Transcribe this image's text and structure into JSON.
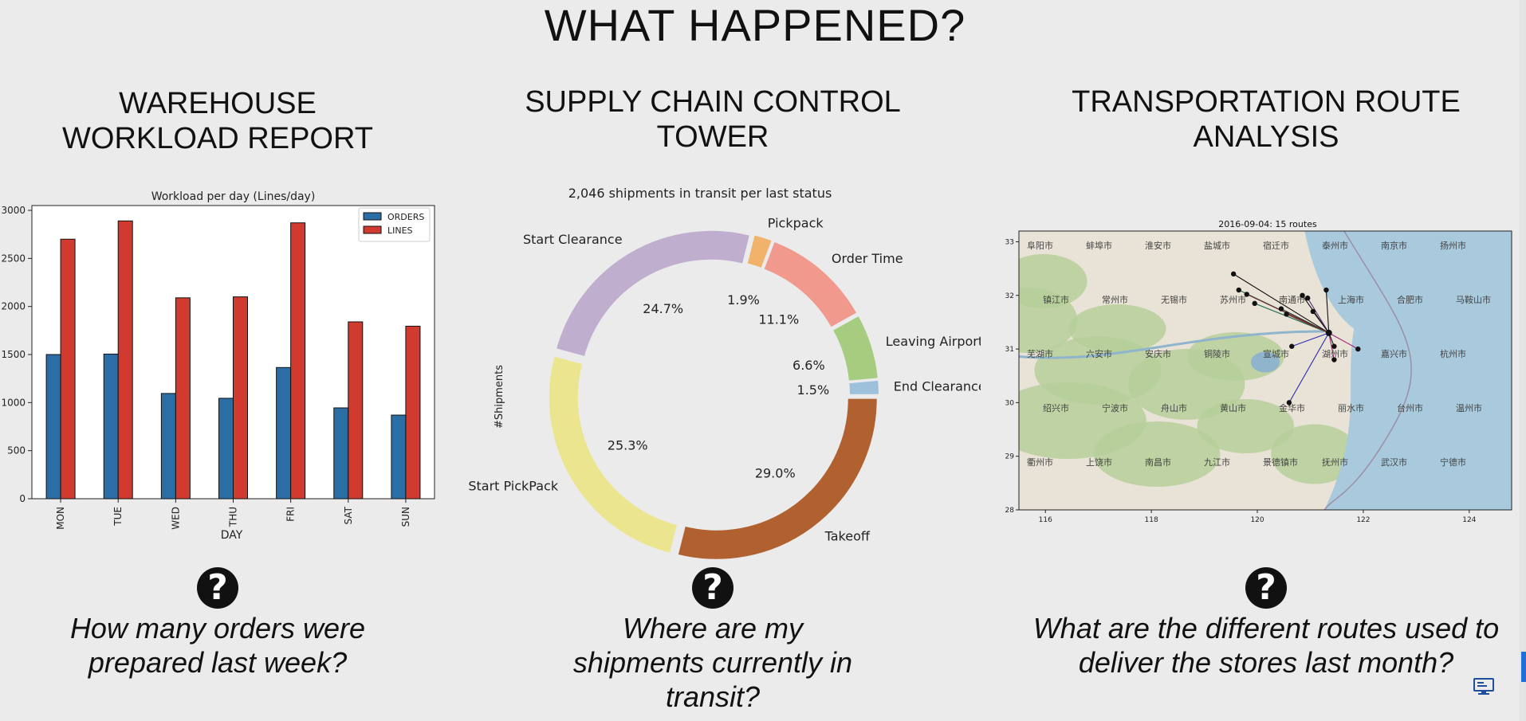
{
  "page": {
    "title": "WHAT HAPPENED?"
  },
  "sections": [
    {
      "title_line1": "WAREHOUSE",
      "title_line2": "WORKLOAD REPORT",
      "question_line1": "How many orders were",
      "question_line2": "prepared last week?",
      "question_line3": ""
    },
    {
      "title_line1": "SUPPLY CHAIN CONTROL",
      "title_line2": "TOWER",
      "question_line1": "Where are my",
      "question_line2": "shipments currently in",
      "question_line3": "transit?"
    },
    {
      "title_line1": "TRANSPORTATION ROUTE",
      "title_line2": "ANALYSIS",
      "question_line1": "What are the different routes used to",
      "question_line2": "deliver the stores last month?",
      "question_line3": ""
    }
  ],
  "help_icon": "question-mark-icon",
  "chart_data": [
    {
      "type": "bar",
      "title": "Workload per day (Lines/day)",
      "xlabel": "DAY",
      "ylabel": "",
      "categories": [
        "MON",
        "TUE",
        "WED",
        "THU",
        "FRI",
        "SAT",
        "SUN"
      ],
      "series": [
        {
          "name": "ORDERS",
          "color": "#2b6ea5",
          "values": [
            1500,
            1505,
            1095,
            1045,
            1365,
            945,
            870
          ]
        },
        {
          "name": "LINES",
          "color": "#d03a2f",
          "values": [
            2700,
            2890,
            2090,
            2100,
            2870,
            1840,
            1795
          ]
        }
      ],
      "ylim": [
        0,
        3050
      ],
      "yticks": [
        0,
        500,
        1000,
        1500,
        2000,
        2500,
        3000
      ],
      "legend": "top-right",
      "grid": false
    },
    {
      "type": "pie",
      "variant": "donut",
      "title": "2,046 shipments in transit per last status",
      "ylabel": "#Shipments",
      "slices": [
        {
          "label": "End Clearance",
          "pct": 1.5,
          "pct_label": "1.5%",
          "color": "#9ec1db"
        },
        {
          "label": "Leaving Airport",
          "pct": 6.6,
          "pct_label": "6.6%",
          "color": "#a6cc7f"
        },
        {
          "label": "Order Time",
          "pct": 11.1,
          "pct_label": "11.1%",
          "color": "#f0998c"
        },
        {
          "label": "Pickpack",
          "pct": 1.9,
          "pct_label": "1.9%",
          "color": "#f1b36b"
        },
        {
          "label": "Start Clearance",
          "pct": 24.7,
          "pct_label": "24.7%",
          "color": "#c0aece"
        },
        {
          "label": "Start PickPack",
          "pct": 25.3,
          "pct_label": "25.3%",
          "color": "#ece590"
        },
        {
          "label": "Takeoff",
          "pct": 29.0,
          "pct_label": "29.0%",
          "color": "#b0612f"
        }
      ]
    },
    {
      "type": "scatter",
      "variant": "route-map",
      "title": "2016-09-04: 15 routes",
      "xlabel": "",
      "ylabel": "",
      "xlim": [
        115.5,
        124.8
      ],
      "ylim": [
        28,
        33.2
      ],
      "xticks": [
        116,
        118,
        120,
        122,
        124
      ],
      "yticks": [
        28,
        29,
        30,
        31,
        32,
        33
      ],
      "hub": {
        "lon": 121.35,
        "lat": 31.3
      },
      "stores": [
        {
          "lon": 119.55,
          "lat": 32.4
        },
        {
          "lon": 119.65,
          "lat": 32.1
        },
        {
          "lon": 119.8,
          "lat": 32.02
        },
        {
          "lon": 119.95,
          "lat": 31.85
        },
        {
          "lon": 120.45,
          "lat": 31.75
        },
        {
          "lon": 120.55,
          "lat": 31.65
        },
        {
          "lon": 120.85,
          "lat": 32.0
        },
        {
          "lon": 120.95,
          "lat": 31.95
        },
        {
          "lon": 121.05,
          "lat": 31.7
        },
        {
          "lon": 121.3,
          "lat": 32.1
        },
        {
          "lon": 120.65,
          "lat": 31.05
        },
        {
          "lon": 120.6,
          "lat": 30.0
        },
        {
          "lon": 121.45,
          "lat": 30.8
        },
        {
          "lon": 121.45,
          "lat": 31.05
        },
        {
          "lon": 121.9,
          "lat": 31.0
        }
      ],
      "place_names": [
        "阜阳市",
        "蚌埠市",
        "淮安市",
        "盐城市",
        "宿迁市",
        "泰州市",
        "南京市",
        "扬州市",
        "镇江市",
        "常州市",
        "无锡市",
        "苏州市",
        "南通市",
        "上海市",
        "合肥市",
        "马鞍山市",
        "芜湖市",
        "六安市",
        "安庆市",
        "铜陵市",
        "宣城市",
        "湖州市",
        "嘉兴市",
        "杭州市",
        "绍兴市",
        "宁波市",
        "舟山市",
        "黄山市",
        "金华市",
        "丽水市",
        "台州市",
        "温州市",
        "衢州市",
        "上饶市",
        "南昌市",
        "九江市",
        "景德镇市",
        "抚州市",
        "武汉市",
        "宁德市"
      ]
    }
  ],
  "taskbar": {
    "icon": "monitor-icon",
    "accent": "#1e6fd6"
  }
}
